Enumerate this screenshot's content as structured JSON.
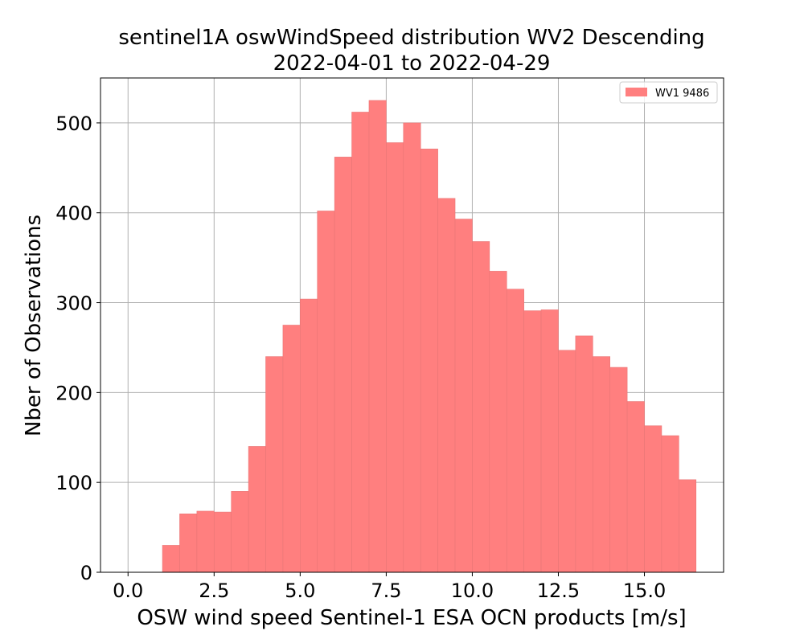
{
  "chart_data": {
    "type": "bar",
    "title_line1": "sentinel1A oswWindSpeed distribution WV2 Descending",
    "title_line2": "2022-04-01 to 2022-04-29",
    "xlabel": "OSW wind speed Sentinel-1 ESA OCN products [m/s]",
    "ylabel": "Nber of Observations",
    "xlim": [
      -0.8,
      17.3
    ],
    "ylim": [
      0,
      550
    ],
    "xticks": [
      0.0,
      2.5,
      5.0,
      7.5,
      10.0,
      12.5,
      15.0
    ],
    "xtick_labels": [
      "0.0",
      "2.5",
      "5.0",
      "7.5",
      "10.0",
      "12.5",
      "15.0"
    ],
    "yticks": [
      0,
      100,
      200,
      300,
      400,
      500
    ],
    "ytick_labels": [
      "0",
      "100",
      "200",
      "300",
      "400",
      "500"
    ],
    "grid": true,
    "legend_position": "top-right",
    "bin_width": 0.5,
    "series": [
      {
        "name": "WV1 9486",
        "color": "#ff7f7f",
        "bin_starts": [
          1.0,
          1.5,
          2.0,
          2.5,
          3.0,
          3.5,
          4.0,
          4.5,
          5.0,
          5.5,
          6.0,
          6.5,
          7.0,
          7.5,
          8.0,
          8.5,
          9.0,
          9.5,
          10.0,
          10.5,
          11.0,
          11.5,
          12.0,
          12.5,
          13.0,
          13.5,
          14.0,
          14.5,
          15.0,
          15.5,
          16.0
        ],
        "values": [
          30,
          65,
          68,
          67,
          90,
          140,
          240,
          275,
          304,
          402,
          462,
          512,
          525,
          478,
          500,
          471,
          416,
          393,
          368,
          335,
          315,
          291,
          292,
          247,
          263,
          240,
          228,
          190,
          163,
          152,
          103
        ]
      }
    ]
  }
}
